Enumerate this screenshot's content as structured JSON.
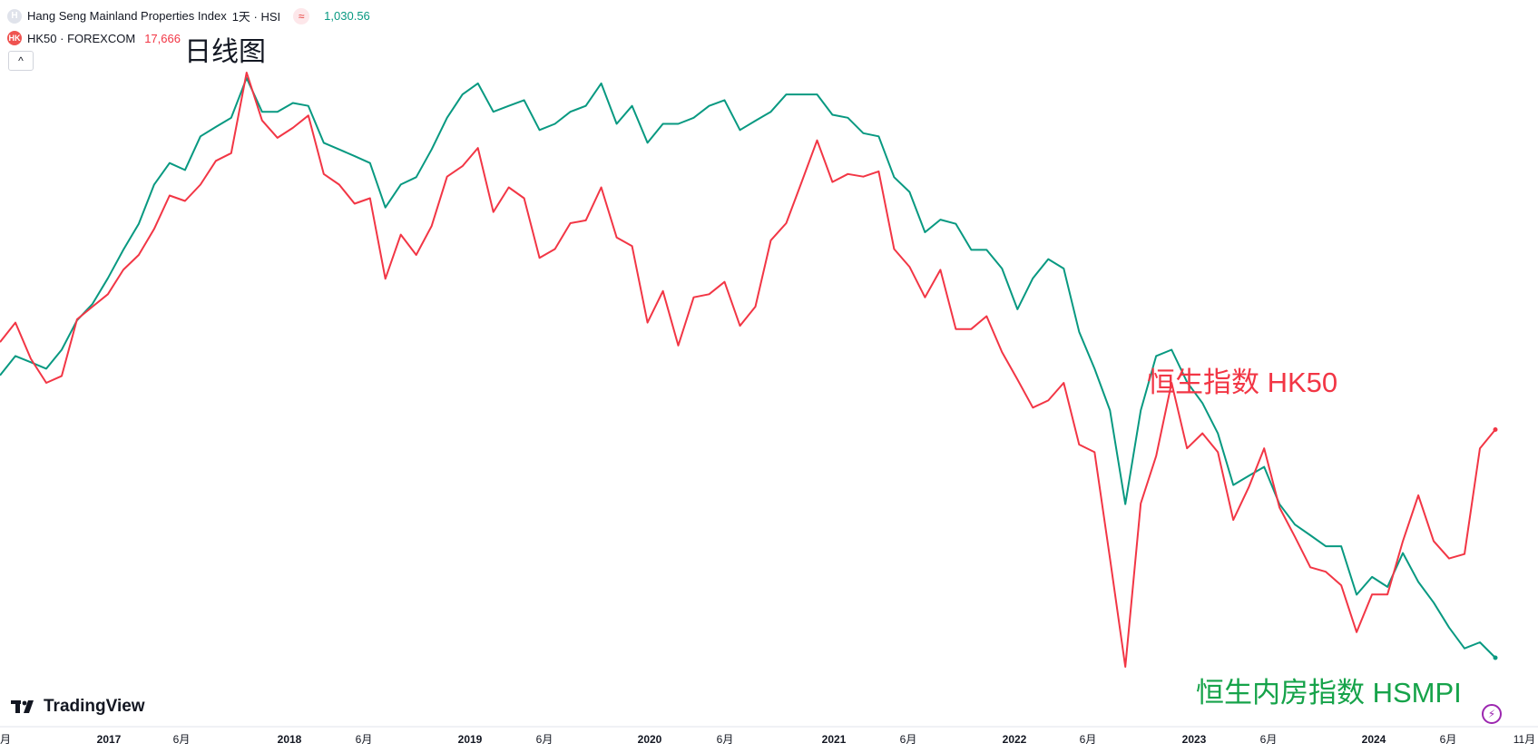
{
  "legend": {
    "main": {
      "icon": "H",
      "name": "Hang Seng Mainland Properties Index",
      "meta": "1天 · HSI",
      "badge": "≈",
      "value": "1,030.56"
    },
    "compare": {
      "icon": "HK",
      "name": "HK50 · FOREXCOM",
      "value": "17,666"
    },
    "collapse_symbol": "^"
  },
  "annotations": {
    "daily": "日线图",
    "hk50": "恒生指数 HK50",
    "hsmpi": "恒生内房指数 HSMPI"
  },
  "branding": {
    "logo_text": "TradingView"
  },
  "colors": {
    "hsmpi": "#089981",
    "hk50": "#f23645",
    "annot_green": "#16a34a"
  },
  "chart_data": {
    "type": "line",
    "x_ticks": [
      "月",
      "2017",
      "6月",
      "2018",
      "6月",
      "2019",
      "6月",
      "2020",
      "6月",
      "2021",
      "6月",
      "2022",
      "6月",
      "2023",
      "6月",
      "2024",
      "6月",
      "11月"
    ],
    "x": [
      "2016-09",
      "2016-10",
      "2016-11",
      "2016-12",
      "2017-01",
      "2017-02",
      "2017-03",
      "2017-04",
      "2017-05",
      "2017-06",
      "2017-07",
      "2017-08",
      "2017-09",
      "2017-10",
      "2017-11",
      "2017-12",
      "2018-01",
      "2018-02",
      "2018-03",
      "2018-04",
      "2018-05",
      "2018-06",
      "2018-07",
      "2018-08",
      "2018-09",
      "2018-10",
      "2018-11",
      "2018-12",
      "2019-01",
      "2019-02",
      "2019-03",
      "2019-04",
      "2019-05",
      "2019-06",
      "2019-07",
      "2019-08",
      "2019-09",
      "2019-10",
      "2019-11",
      "2019-12",
      "2020-01",
      "2020-02",
      "2020-03",
      "2020-04",
      "2020-05",
      "2020-06",
      "2020-07",
      "2020-08",
      "2020-09",
      "2020-10",
      "2020-11",
      "2020-12",
      "2021-01",
      "2021-02",
      "2021-03",
      "2021-04",
      "2021-05",
      "2021-06",
      "2021-07",
      "2021-08",
      "2021-09",
      "2021-10",
      "2021-11",
      "2021-12",
      "2022-01",
      "2022-02",
      "2022-03",
      "2022-04",
      "2022-05",
      "2022-06",
      "2022-07",
      "2022-08",
      "2022-09",
      "2022-10",
      "2022-11",
      "2022-12",
      "2023-01",
      "2023-02",
      "2023-03",
      "2023-04",
      "2023-05",
      "2023-06",
      "2023-07",
      "2023-08",
      "2023-09",
      "2023-10",
      "2023-11",
      "2023-12",
      "2024-01",
      "2024-02",
      "2024-03",
      "2024-04",
      "2024-05",
      "2024-06",
      "2024-07",
      "2024-08",
      "2024-09",
      "2024-10"
    ],
    "series": [
      {
        "name": "恒生指数 HK50",
        "color": "#f23645",
        "values": [
          23000,
          23600,
          22500,
          21800,
          22000,
          23700,
          24100,
          24500,
          25300,
          25800,
          26700,
          27900,
          27700,
          28300,
          29200,
          29500,
          32800,
          30800,
          30100,
          30500,
          31000,
          28700,
          28300,
          27600,
          27800,
          25000,
          26500,
          25800,
          26800,
          28600,
          29000,
          29700,
          27300,
          28200,
          27800,
          25700,
          26000,
          26900,
          27000,
          28200,
          26400,
          26100,
          23600,
          24600,
          22900,
          24400,
          24500,
          24900,
          23500,
          24100,
          26300,
          26900,
          28400,
          30000,
          28400,
          28700,
          28600,
          28800,
          26000,
          25400,
          24400,
          25300,
          23400,
          23400,
          23800,
          22700,
          21900,
          21100,
          21300,
          21800,
          20100,
          19900,
          17300,
          15000,
          18600,
          19800,
          21800,
          20000,
          20400,
          19900,
          18200,
          19000,
          20000,
          18500,
          17800,
          17100,
          17000,
          16700,
          15700,
          16500,
          16500,
          17700,
          18800,
          17700,
          17300,
          17400,
          20000,
          20500
        ]
      },
      {
        "name": "恒生内房指数 HSMPI",
        "color": "#089981",
        "values": [
          2450,
          2600,
          2550,
          2500,
          2650,
          2900,
          3050,
          3300,
          3600,
          3900,
          4400,
          4700,
          4600,
          5100,
          5250,
          5400,
          6100,
          5500,
          5500,
          5650,
          5600,
          5000,
          4900,
          4800,
          4700,
          4100,
          4400,
          4500,
          4900,
          5400,
          5800,
          6000,
          5500,
          5600,
          5700,
          5200,
          5300,
          5500,
          5600,
          6000,
          5300,
          5600,
          5000,
          5300,
          5300,
          5400,
          5600,
          5700,
          5200,
          5350,
          5500,
          5800,
          5800,
          5800,
          5450,
          5400,
          5150,
          5100,
          4500,
          4300,
          3800,
          3950,
          3900,
          3600,
          3600,
          3400,
          3000,
          3300,
          3500,
          3400,
          2800,
          2500,
          2200,
          1650,
          2200,
          2600,
          2650,
          2400,
          2250,
          2050,
          1750,
          1800,
          1850,
          1650,
          1550,
          1500,
          1450,
          1450,
          1250,
          1320,
          1280,
          1420,
          1300,
          1220,
          1130,
          1060,
          1080,
          1030
        ]
      }
    ]
  }
}
